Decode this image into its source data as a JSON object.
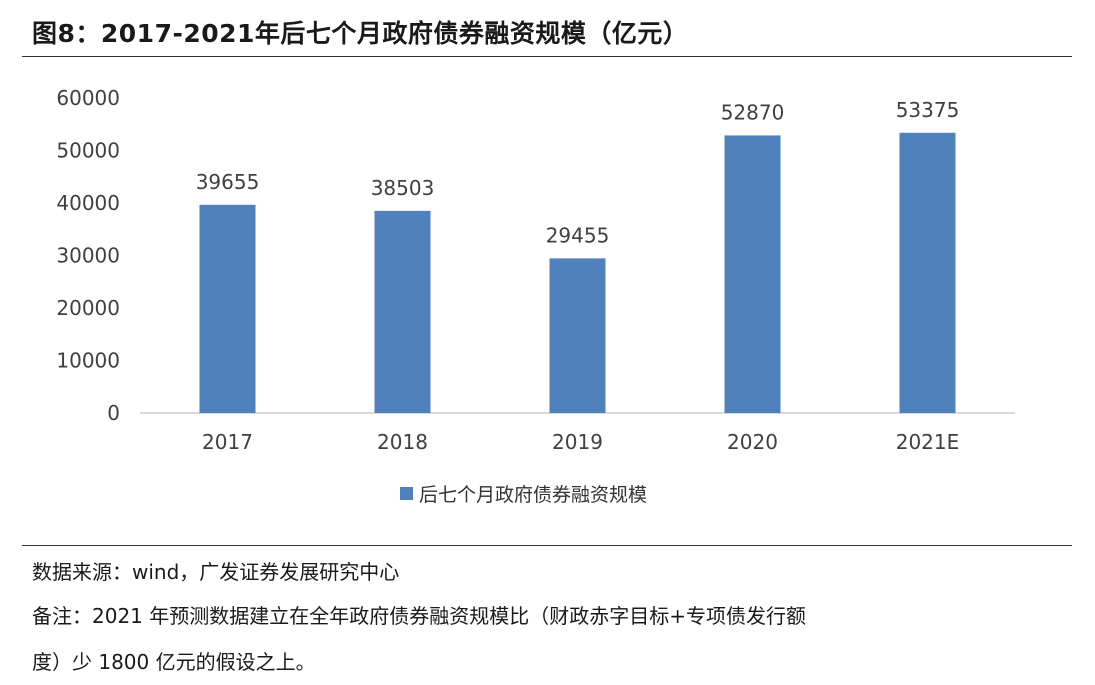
{
  "title": "图8：2017-2021年后七个月政府债券融资规模（亿元）",
  "notes": {
    "source": "数据来源：wind，广发证券发展研究中心",
    "remark_line1": "备注：2021 年预测数据建立在全年政府债券融资规模比（财政赤字目标+专项债发行额",
    "remark_line2": "度）少 1800 亿元的假设之上。"
  },
  "colors": {
    "bar": "#4f81bd",
    "axis": "#d9d9d9",
    "text": "#404040"
  },
  "chart_data": {
    "type": "bar",
    "categories": [
      "2017",
      "2018",
      "2019",
      "2020",
      "2021E"
    ],
    "series": [
      {
        "name": "后七个月政府债券融资规模",
        "values": [
          39655,
          38503,
          29455,
          52870,
          53375
        ]
      }
    ],
    "data_labels": [
      "39655",
      "38503",
      "29455",
      "52870",
      "53375"
    ],
    "ylim": [
      0,
      60000
    ],
    "yticks": [
      0,
      10000,
      20000,
      30000,
      40000,
      50000,
      60000
    ],
    "grid": false,
    "legend": "bottom"
  }
}
